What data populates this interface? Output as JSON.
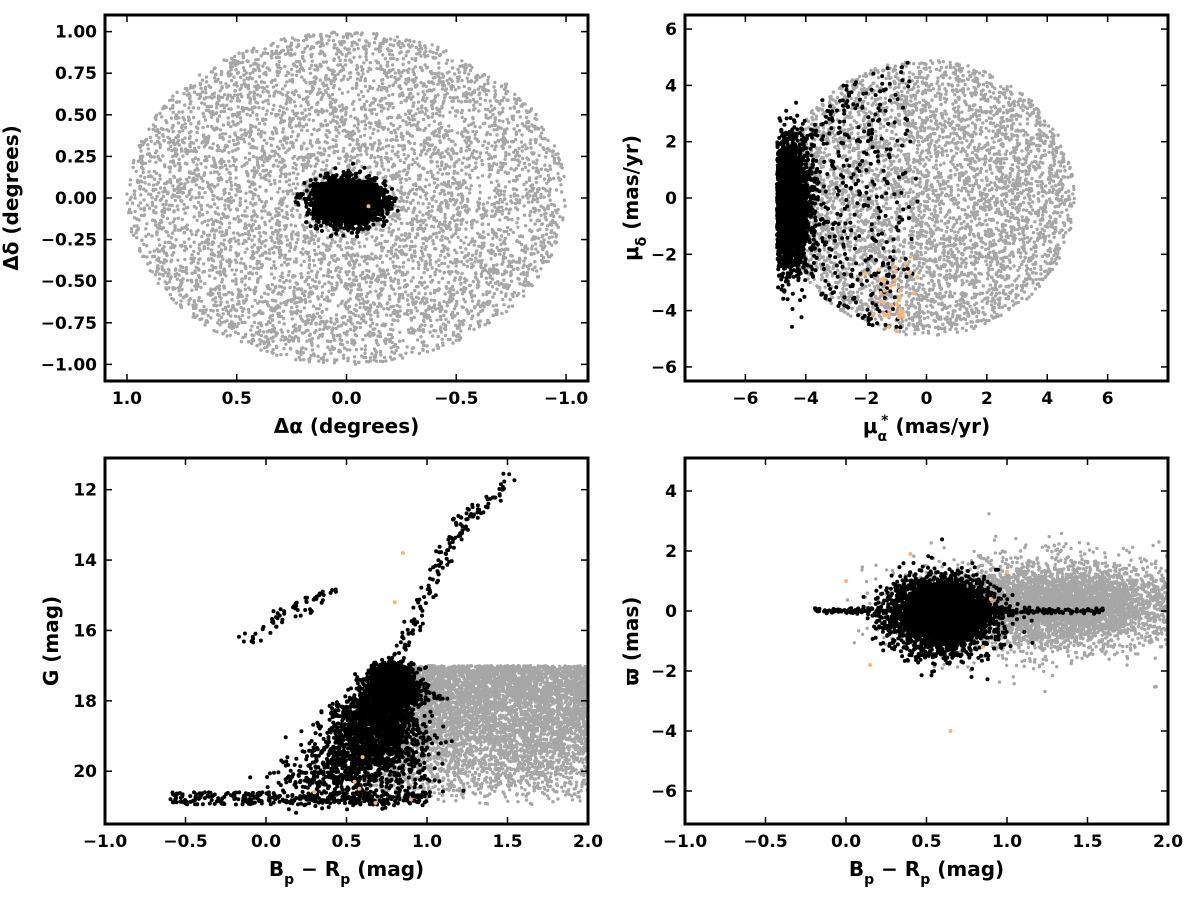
{
  "colors": {
    "field": "#a6a6a6",
    "members": "#000000",
    "highlight": "#f5b67a"
  },
  "chart_data": [
    {
      "id": "sky",
      "type": "scatter",
      "xlabel_main": "Δα",
      "xlabel_rest": " (degrees)",
      "ylabel_main": "Δδ",
      "ylabel_rest": " (degrees)",
      "xlim": [
        1.1,
        -1.1
      ],
      "ylim": [
        -1.1,
        1.1
      ],
      "xticks": [
        1.0,
        0.5,
        0.0,
        -0.5,
        -1.0
      ],
      "xtick_labels": [
        "1.0",
        "0.5",
        "0.0",
        "−0.5",
        "−1.0"
      ],
      "yticks": [
        -1.0,
        -0.75,
        -0.5,
        -0.25,
        0.0,
        0.25,
        0.5,
        0.75,
        1.0
      ],
      "ytick_labels": [
        "−1.00",
        "−0.75",
        "−0.50",
        "−0.25",
        "0.00",
        "0.25",
        "0.50",
        "0.75",
        "1.00"
      ],
      "series": [
        {
          "style": "field",
          "distribution": "uniform-disk",
          "center": [
            0,
            0
          ],
          "radius": [
            1.0,
            1.0
          ],
          "approx_count": 6000
        },
        {
          "style": "members",
          "distribution": "gaussian",
          "center": [
            0.0,
            -0.02
          ],
          "sigma": [
            0.07,
            0.06
          ],
          "radius_cut": 0.25,
          "approx_count": 3500
        },
        {
          "style": "highlight",
          "distribution": "points",
          "x": [
            -0.1
          ],
          "y": [
            -0.05
          ]
        }
      ]
    },
    {
      "id": "pm",
      "type": "scatter",
      "xlabel_main": "μ",
      "xlabel_sub": "α",
      "xlabel_sup": "*",
      "xlabel_rest": "  (mas/yr)",
      "ylabel_main": "μ",
      "ylabel_sub": "δ",
      "ylabel_rest": " (mas/yr)",
      "xlim": [
        -8,
        8
      ],
      "ylim": [
        -6.5,
        6.5
      ],
      "xticks": [
        -6,
        -4,
        -2,
        0,
        2,
        4,
        6
      ],
      "xtick_labels": [
        "−6",
        "−4",
        "−2",
        "0",
        "2",
        "4",
        "6"
      ],
      "yticks": [
        -6,
        -4,
        -2,
        0,
        2,
        4,
        6
      ],
      "ytick_labels": [
        "−6",
        "−4",
        "−2",
        "0",
        "2",
        "4",
        "6"
      ],
      "series": [
        {
          "style": "field",
          "distribution": "uniform-disk-clipped",
          "center": [
            0,
            0
          ],
          "radius": [
            4.9,
            4.9
          ],
          "approx_count": 4500
        },
        {
          "style": "members",
          "distribution": "gaussian",
          "center": [
            -4.6,
            -0.2
          ],
          "sigma": [
            0.35,
            1.1
          ],
          "approx_count": 3000
        },
        {
          "style": "members",
          "distribution": "uniform-disk-clipped",
          "center": [
            0,
            0
          ],
          "radius": [
            4.9,
            4.9
          ],
          "xmax": -0.8,
          "approx_count": 1200
        },
        {
          "style": "highlight",
          "distribution": "gaussian",
          "center": [
            -1.1,
            -3.4
          ],
          "sigma": [
            0.35,
            0.8
          ],
          "approx_count": 40
        }
      ]
    },
    {
      "id": "cmd",
      "type": "scatter",
      "xlabel_main": "B",
      "xlabel_sub": "p",
      "xlabel_mid": " − R",
      "xlabel_sub2": "p",
      "xlabel_rest": " (mag)",
      "ylabel_main": "G",
      "ylabel_rest": " (mag)",
      "xlim": [
        -1.0,
        2.0
      ],
      "ylim": [
        21.5,
        11.1
      ],
      "xticks": [
        -1.0,
        -0.5,
        0.0,
        0.5,
        1.0,
        1.5,
        2.0
      ],
      "xtick_labels": [
        "−1.0",
        "−0.5",
        "0.0",
        "0.5",
        "1.0",
        "1.5",
        "2.0"
      ],
      "yticks": [
        12,
        14,
        16,
        18,
        20
      ],
      "ytick_labels": [
        "12",
        "14",
        "16",
        "18",
        "20"
      ],
      "series": [
        {
          "style": "field",
          "distribution": "band",
          "xrange": [
            0.6,
            2.0
          ],
          "yrange": [
            17.0,
            21.0
          ],
          "approx_count": 6000
        },
        {
          "style": "members",
          "distribution": "main-sequence",
          "approx_count": 3500
        },
        {
          "style": "members",
          "distribution": "branch",
          "x": [
            -0.15,
            0.0,
            0.1,
            0.2,
            0.3,
            0.4
          ],
          "y": [
            16.4,
            15.9,
            15.6,
            15.4,
            15.1,
            14.9
          ],
          "approx_count": 60
        },
        {
          "style": "members",
          "distribution": "giant-branch",
          "x": [
            0.75,
            0.9,
            1.0,
            1.1,
            1.2,
            1.35,
            1.55
          ],
          "y": [
            17.0,
            16.0,
            15.0,
            14.0,
            13.0,
            12.5,
            11.6
          ],
          "approx_count": 150
        },
        {
          "style": "highlight",
          "distribution": "points",
          "x": [
            0.3,
            0.55,
            0.6,
            0.85,
            0.8,
            0.68,
            0.58,
            0.9
          ],
          "y": [
            20.6,
            20.3,
            19.6,
            13.8,
            15.2,
            20.9,
            20.5,
            20.8
          ]
        }
      ]
    },
    {
      "id": "parallax",
      "type": "scatter",
      "xlabel_main": "B",
      "xlabel_sub": "p",
      "xlabel_mid": " − R",
      "xlabel_sub2": "p",
      "xlabel_rest": " (mag)",
      "ylabel_main": "ϖ",
      "ylabel_rest": " (mas)",
      "xlim": [
        -1.0,
        2.0
      ],
      "ylim": [
        -7.1,
        5.1
      ],
      "xticks": [
        -1.0,
        -0.5,
        0.0,
        0.5,
        1.0,
        1.5,
        2.0
      ],
      "xtick_labels": [
        "−1.0",
        "−0.5",
        "0.0",
        "0.5",
        "1.0",
        "1.5",
        "2.0"
      ],
      "yticks": [
        -6,
        -4,
        -2,
        0,
        2,
        4
      ],
      "ytick_labels": [
        "−6",
        "−4",
        "−2",
        "0",
        "2",
        "4"
      ],
      "series": [
        {
          "style": "field",
          "distribution": "gaussian",
          "center": [
            1.3,
            0.2
          ],
          "sigma": [
            0.4,
            0.7
          ],
          "approx_count": 5000
        },
        {
          "style": "members",
          "distribution": "gaussian",
          "center": [
            0.6,
            -0.1
          ],
          "sigma": [
            0.16,
            0.6
          ],
          "approx_count": 3500
        },
        {
          "style": "members",
          "distribution": "stripe",
          "xrange": [
            -0.2,
            1.6
          ],
          "y": 0.0,
          "approx_count": 300
        },
        {
          "style": "highlight",
          "distribution": "points",
          "x": [
            0.0,
            0.15,
            0.4,
            0.65,
            0.85,
            1.0,
            0.9
          ],
          "y": [
            1.0,
            -1.8,
            1.9,
            -4.0,
            -1.2,
            1.3,
            0.4
          ]
        }
      ]
    }
  ]
}
